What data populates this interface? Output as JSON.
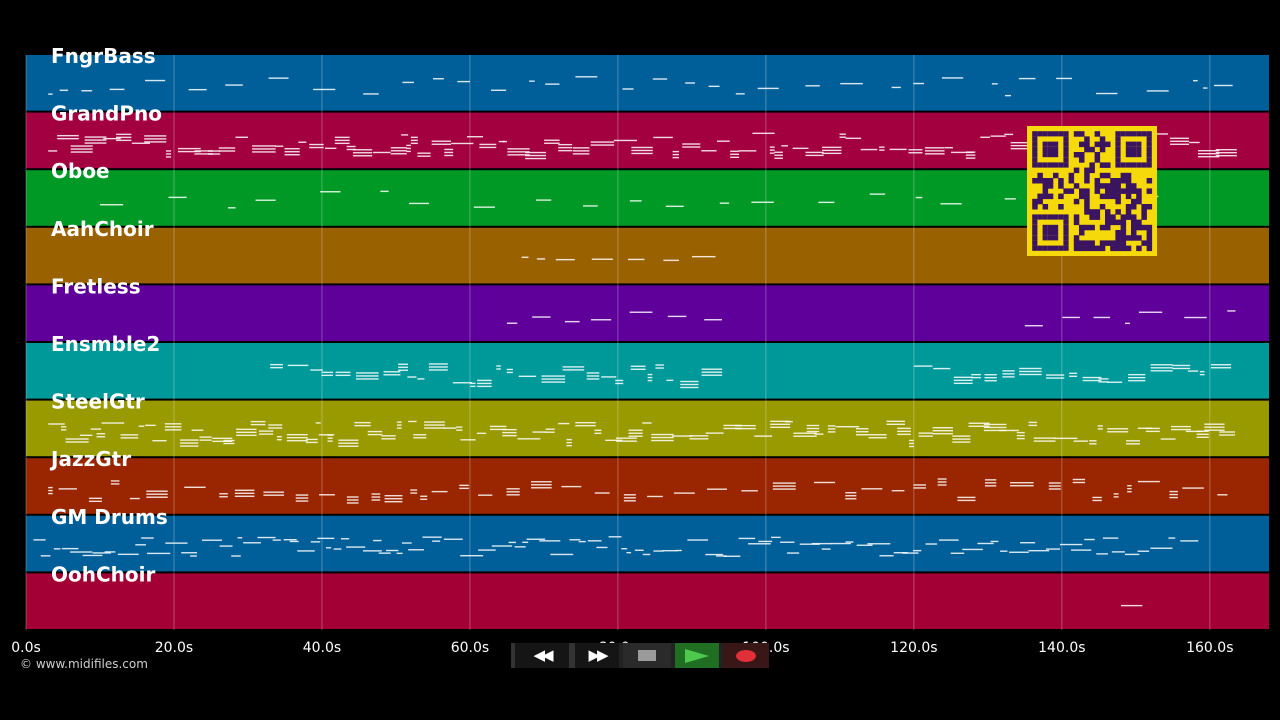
{
  "tracks": [
    {
      "name": "FngrBass",
      "color": "#005f99"
    },
    {
      "name": "GrandPno",
      "color": "#a30040"
    },
    {
      "name": "Oboe",
      "color": "#009926"
    },
    {
      "name": "AahChoir",
      "color": "#996100"
    },
    {
      "name": "Fretless",
      "color": "#5e0099"
    },
    {
      "name": "Ensmble2",
      "color": "#009999"
    },
    {
      "name": "SteelGtr",
      "color": "#999900"
    },
    {
      "name": "JazzGtr",
      "color": "#992600"
    },
    {
      "name": "GM Drums",
      "color": "#005f99"
    },
    {
      "name": "OohChoir",
      "color": "#a30036"
    }
  ],
  "timeline": {
    "range_seconds": [
      0,
      168
    ],
    "ticks": [
      {
        "value": 0,
        "label": "0.0s"
      },
      {
        "value": 20,
        "label": "20.0s"
      },
      {
        "value": 40,
        "label": "40.0s"
      },
      {
        "value": 60,
        "label": "60.0s"
      },
      {
        "value": 80,
        "label": "80.0s"
      },
      {
        "value": 100,
        "label": "100.0s"
      },
      {
        "value": 120,
        "label": "120.0s"
      },
      {
        "value": 140,
        "label": "140.0s"
      },
      {
        "value": 160,
        "label": "160.0s"
      }
    ]
  },
  "footer": {
    "copyright": "© www.midifiles.com"
  },
  "transport": {
    "rewind_icon": "rewind-icon",
    "fast_forward_icon": "fast-forward-icon",
    "stop_icon": "stop-icon",
    "play_icon": "play-icon",
    "record_icon": "record-icon"
  },
  "qr_icon": "qr-code-icon"
}
